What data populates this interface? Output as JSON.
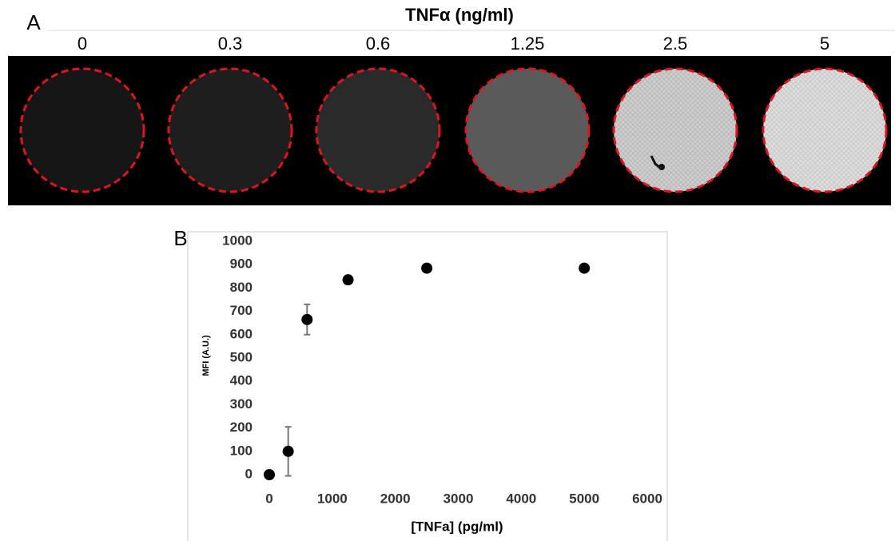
{
  "panel_a": {
    "label": "A",
    "title": "TNFα (ng/ml)",
    "concentrations": [
      "0",
      "0.3",
      "0.6",
      "1.25",
      "2.5",
      "5"
    ]
  },
  "panel_b": {
    "label": "B"
  },
  "chart_data": {
    "type": "scatter",
    "x": [
      0,
      300,
      600,
      1250,
      2500,
      5000
    ],
    "y": [
      0,
      100,
      665,
      835,
      885,
      885
    ],
    "errors": [
      0,
      105,
      65,
      10,
      5,
      5
    ],
    "color": "#000000",
    "xlabel": "[TNFa] (pg/ml)",
    "ylabel": "MFI (A.U.)",
    "xlim": [
      0,
      6000
    ],
    "xticks": [
      0,
      1000,
      2000,
      3000,
      4000,
      5000,
      6000
    ],
    "ylim": [
      0,
      1000
    ],
    "yticks": [
      0,
      100,
      200,
      300,
      400,
      500,
      600,
      700,
      800,
      900,
      1000
    ],
    "grid": false
  }
}
